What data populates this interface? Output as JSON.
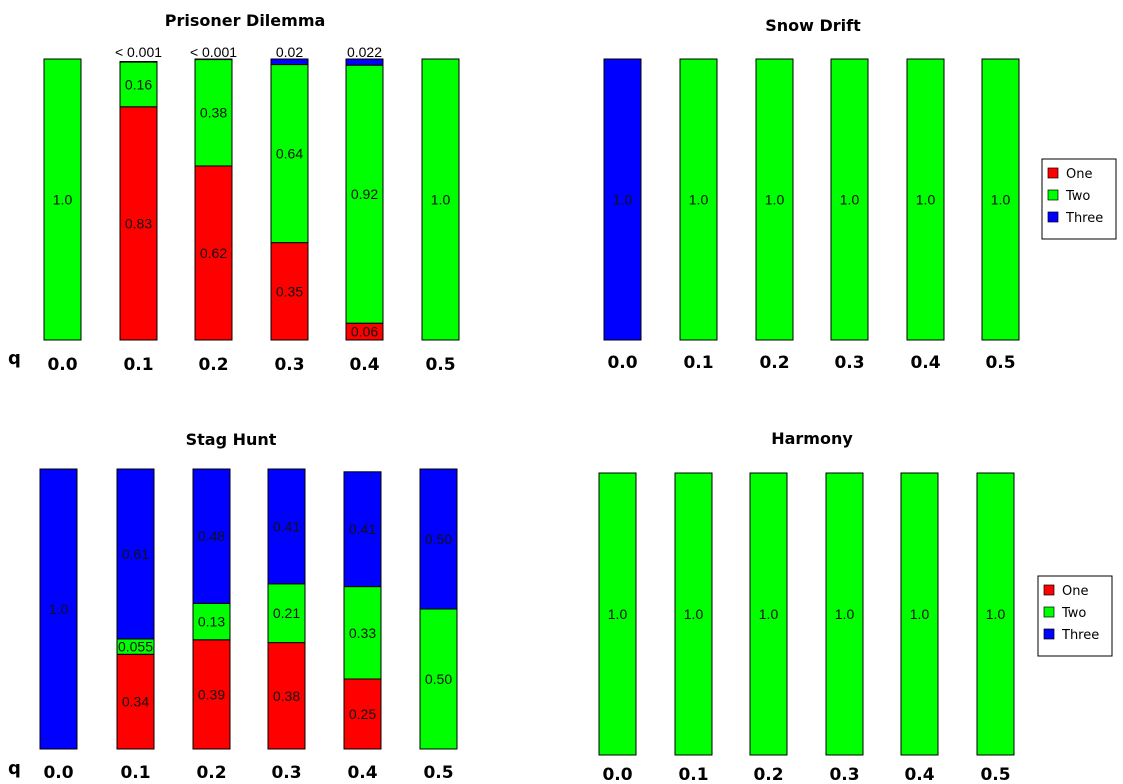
{
  "colors": {
    "One": "#ff0000",
    "Two": "#00ff00",
    "Three": "#0000ff"
  },
  "x_axis_symbol": "q",
  "legend": {
    "entries": [
      "One",
      "Two",
      "Three"
    ]
  },
  "chart_data": [
    {
      "type": "bar",
      "stacked": true,
      "title": "Prisoner Dilemma",
      "categories": [
        "0.0",
        "0.1",
        "0.2",
        "0.3",
        "0.4",
        "0.5"
      ],
      "ylim": [
        0,
        1
      ],
      "show_q": true,
      "series": [
        {
          "name": "One",
          "values": [
            0,
            0.83,
            0.62,
            0.35,
            0.06,
            0
          ]
        },
        {
          "name": "Two",
          "values": [
            1.0,
            0.16,
            0.38,
            0.64,
            0.92,
            1.0
          ]
        },
        {
          "name": "Three",
          "values": [
            0,
            0.001,
            0.001,
            0.02,
            0.022,
            0
          ]
        }
      ],
      "segment_labels": [
        [
          "",
          "0.83",
          "0.62",
          "0.35",
          "0.06",
          ""
        ],
        [
          "1.0",
          "0.16",
          "0.38",
          "0.64",
          "0.92",
          "1.0"
        ],
        [
          "",
          "",
          "",
          "",
          "",
          ""
        ]
      ],
      "top_labels": [
        "",
        "< 0.001",
        "< 0.001",
        "0.02",
        "0.022",
        ""
      ]
    },
    {
      "type": "bar",
      "stacked": true,
      "title": "Snow Drift",
      "categories": [
        "0.0",
        "0.1",
        "0.2",
        "0.3",
        "0.4",
        "0.5"
      ],
      "ylim": [
        0,
        1
      ],
      "show_q": false,
      "series": [
        {
          "name": "One",
          "values": [
            0,
            0,
            0,
            0,
            0,
            0
          ]
        },
        {
          "name": "Two",
          "values": [
            0,
            1.0,
            1.0,
            1.0,
            1.0,
            1.0
          ]
        },
        {
          "name": "Three",
          "values": [
            1.0,
            0,
            0,
            0,
            0,
            0
          ]
        }
      ],
      "segment_labels": [
        [
          "",
          "",
          "",
          "",
          "",
          ""
        ],
        [
          "",
          "1.0",
          "1.0",
          "1.0",
          "1.0",
          "1.0"
        ],
        [
          "1.0",
          "",
          "",
          "",
          "",
          ""
        ]
      ],
      "top_labels": [
        "",
        "",
        "",
        "",
        "",
        ""
      ],
      "legend": "right"
    },
    {
      "type": "bar",
      "stacked": true,
      "title": "Stag Hunt",
      "categories": [
        "0.0",
        "0.1",
        "0.2",
        "0.3",
        "0.4",
        "0.5"
      ],
      "ylim": [
        0,
        1
      ],
      "show_q": true,
      "series": [
        {
          "name": "One",
          "values": [
            0,
            0.34,
            0.39,
            0.38,
            0.25,
            0
          ]
        },
        {
          "name": "Two",
          "values": [
            0,
            0.055,
            0.13,
            0.21,
            0.33,
            0.5
          ]
        },
        {
          "name": "Three",
          "values": [
            1.0,
            0.61,
            0.48,
            0.41,
            0.41,
            0.5
          ]
        }
      ],
      "segment_labels": [
        [
          "",
          "0.34",
          "0.39",
          "0.38",
          "0.25",
          ""
        ],
        [
          "",
          "0.055",
          "0.13",
          "0.21",
          "0.33",
          "0.50"
        ],
        [
          "1.0",
          "0.61",
          "0.48",
          "0.41",
          "0.41",
          "0.50"
        ]
      ],
      "top_labels": [
        "",
        "",
        "",
        "",
        "",
        ""
      ]
    },
    {
      "type": "bar",
      "stacked": true,
      "title": "Harmony",
      "categories": [
        "0.0",
        "0.1",
        "0.2",
        "0.3",
        "0.4",
        "0.5"
      ],
      "ylim": [
        0,
        1
      ],
      "show_q": false,
      "series": [
        {
          "name": "One",
          "values": [
            0,
            0,
            0,
            0,
            0,
            0
          ]
        },
        {
          "name": "Two",
          "values": [
            1.0,
            1.0,
            1.0,
            1.0,
            1.0,
            1.0
          ]
        },
        {
          "name": "Three",
          "values": [
            0,
            0,
            0,
            0,
            0,
            0
          ]
        }
      ],
      "segment_labels": [
        [
          "",
          "",
          "",
          "",
          "",
          ""
        ],
        [
          "1.0",
          "1.0",
          "1.0",
          "1.0",
          "1.0",
          "1.0"
        ],
        [
          "",
          "",
          "",
          "",
          "",
          ""
        ]
      ],
      "top_labels": [
        "",
        "",
        "",
        "",
        "",
        ""
      ],
      "legend": "right"
    }
  ]
}
